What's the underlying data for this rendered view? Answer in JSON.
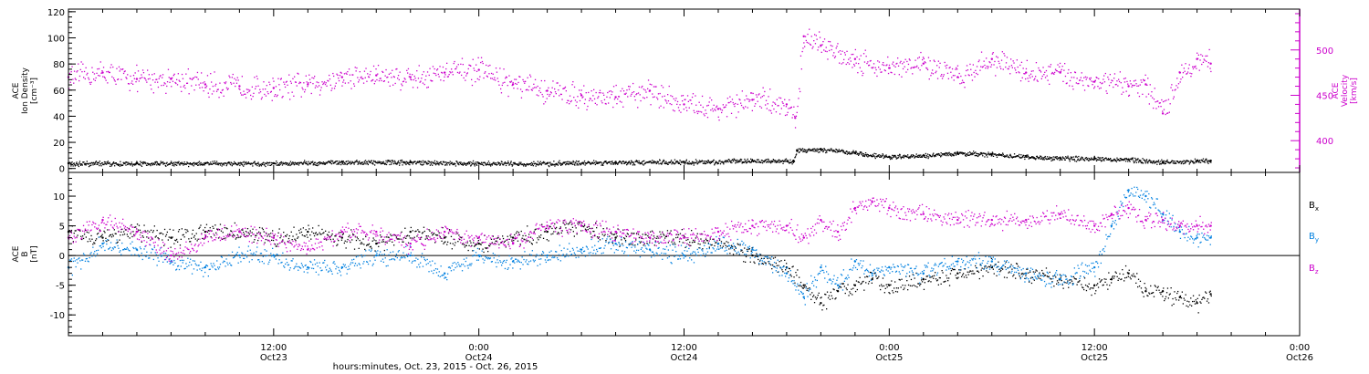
{
  "chart_data": [
    {
      "type": "scatter",
      "title": "",
      "xlabel": "",
      "ylabel_lines": [
        "ACE",
        "Ion Density",
        "[cm⁻³]"
      ],
      "ylabel_right_lines": [
        "ACE",
        "Velocity",
        "[km/s]"
      ],
      "xlim": [
        0,
        72
      ],
      "ylim": [
        -3,
        122
      ],
      "yticks": [
        0,
        20,
        40,
        60,
        80,
        100,
        120
      ],
      "ylim_right": [
        365,
        545
      ],
      "yticks_right": [
        400,
        450,
        500
      ],
      "colors": {
        "density": "#000000",
        "velocity": "#cc00cc"
      },
      "series": [
        {
          "name": "density",
          "axis": "left",
          "x": [
            0,
            4,
            8,
            12,
            16,
            20,
            24,
            28,
            32,
            36,
            40,
            42.4,
            42.6,
            44,
            46,
            48,
            50,
            52,
            54,
            56,
            58,
            60,
            62,
            64,
            66,
            66.8
          ],
          "values": [
            4,
            4,
            4,
            4,
            5,
            5,
            4,
            4,
            5,
            5,
            6,
            6,
            14,
            15,
            12,
            9,
            10,
            12,
            11,
            9,
            8,
            8,
            7,
            5,
            6,
            6
          ]
        },
        {
          "name": "velocity",
          "axis": "right",
          "x": [
            0,
            2,
            4,
            6,
            8,
            10,
            12,
            14,
            16,
            18,
            20,
            22,
            24,
            26,
            28,
            30,
            32,
            34,
            36,
            38,
            40,
            42,
            42.5,
            43,
            44,
            46,
            48,
            50,
            52,
            54,
            56,
            58,
            60,
            62,
            63,
            64,
            65,
            66,
            66.8
          ],
          "values": [
            470,
            475,
            468,
            468,
            462,
            460,
            458,
            462,
            470,
            472,
            470,
            475,
            478,
            462,
            455,
            450,
            448,
            455,
            440,
            435,
            445,
            440,
            425,
            515,
            505,
            490,
            480,
            485,
            470,
            490,
            475,
            475,
            465,
            460,
            462,
            430,
            475,
            490,
            485
          ]
        }
      ]
    },
    {
      "type": "scatter",
      "title": "",
      "ylabel_lines": [
        "ACE",
        "B",
        "[nT]"
      ],
      "xlabel": "hours:minutes, Oct. 23, 2015 - Oct. 26, 2015",
      "xlim": [
        0,
        72
      ],
      "xticks": [
        {
          "x": 12,
          "time": "12:00",
          "date": "Oct23"
        },
        {
          "x": 24,
          "time": "0:00",
          "date": "Oct24"
        },
        {
          "x": 36,
          "time": "12:00",
          "date": "Oct24"
        },
        {
          "x": 48,
          "time": "0:00",
          "date": "Oct25"
        },
        {
          "x": 60,
          "time": "12:00",
          "date": "Oct25"
        },
        {
          "x": 72,
          "time": "0:00",
          "date": "Oct26"
        }
      ],
      "ylim": [
        -13.5,
        14
      ],
      "yticks": [
        -10,
        -5,
        0,
        5,
        10
      ],
      "zero_line": true,
      "legend_position": "right",
      "series": [
        {
          "name": "B",
          "sub": "x",
          "color": "#000000",
          "x": [
            0,
            2,
            4,
            6,
            8,
            10,
            12,
            14,
            16,
            18,
            20,
            22,
            24,
            26,
            28,
            30,
            32,
            34,
            36,
            38,
            40,
            42,
            43,
            44,
            45,
            46,
            47,
            48,
            50,
            52,
            54,
            56,
            58,
            60,
            61,
            62,
            63,
            64,
            65,
            66,
            66.8
          ],
          "values": [
            4,
            3,
            4,
            3,
            4,
            4,
            3,
            4,
            3,
            2,
            4,
            3,
            2,
            3,
            4,
            5,
            3,
            3,
            3,
            2,
            0,
            -2,
            -5,
            -8,
            -6,
            -5,
            -4,
            -5,
            -4,
            -3,
            -2,
            -3,
            -4,
            -5,
            -4,
            -3,
            -6,
            -6,
            -7,
            -8,
            -6.5
          ]
        },
        {
          "name": "B",
          "sub": "y",
          "color": "#0080e0",
          "x": [
            0,
            2,
            4,
            6,
            8,
            10,
            12,
            14,
            16,
            18,
            20,
            22,
            24,
            26,
            28,
            30,
            32,
            34,
            36,
            38,
            40,
            42,
            43,
            44,
            45,
            46,
            47,
            48,
            50,
            52,
            54,
            56,
            58,
            60,
            61,
            62,
            63,
            64,
            65,
            66,
            66.8
          ],
          "values": [
            -2,
            2,
            1,
            -1,
            -2,
            0,
            0,
            -2,
            -2,
            0,
            0,
            -3,
            0,
            -1,
            0,
            1,
            2,
            1,
            0,
            2,
            1,
            -3,
            -7,
            -2,
            -5,
            -1,
            -3,
            -2,
            -3,
            -1,
            -1,
            -3,
            -4,
            -2,
            5,
            11,
            10,
            7,
            4,
            3,
            3
          ]
        },
        {
          "name": "B",
          "sub": "z",
          "color": "#cc00cc",
          "x": [
            0,
            2,
            4,
            6,
            8,
            10,
            12,
            14,
            16,
            18,
            20,
            22,
            24,
            26,
            28,
            30,
            32,
            34,
            36,
            38,
            40,
            42,
            43,
            44,
            45,
            46,
            47,
            48,
            50,
            52,
            54,
            56,
            58,
            60,
            61,
            62,
            63,
            64,
            65,
            66,
            66.8
          ],
          "values": [
            3,
            6,
            4,
            0,
            3,
            4,
            3,
            1,
            4,
            4,
            2,
            4,
            3,
            2,
            5,
            5,
            4,
            3,
            3,
            4,
            5,
            5,
            3,
            6,
            4,
            8,
            9,
            8,
            7,
            6,
            6,
            6,
            7,
            5,
            7,
            8,
            6,
            6,
            5,
            5,
            5
          ]
        }
      ]
    }
  ]
}
